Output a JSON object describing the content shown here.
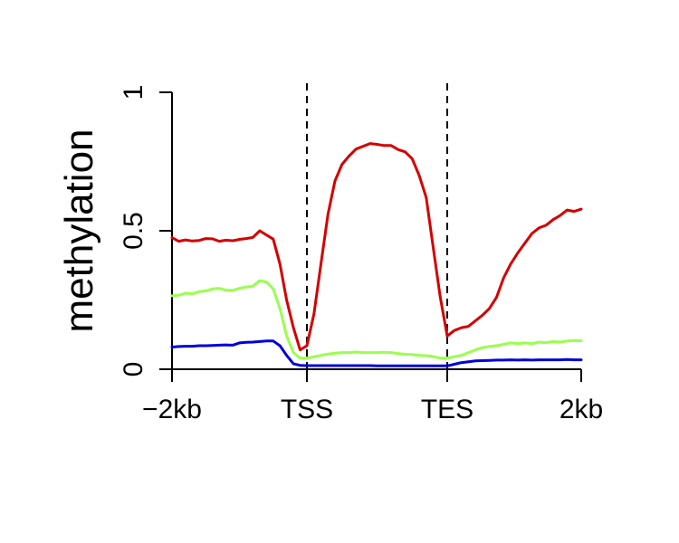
{
  "chart_data": {
    "type": "line",
    "title": "",
    "xlabel": "",
    "ylabel": "methylation",
    "x_ticks": [
      "−2kb",
      "TSS",
      "TES",
      "2kb"
    ],
    "y_ticks": [
      {
        "value": 0,
        "label": "0"
      },
      {
        "value": 0.5,
        "label": "0.5"
      },
      {
        "value": 1,
        "label": "1"
      }
    ],
    "ylim": [
      0,
      1
    ],
    "grid": false,
    "legend": "none",
    "boundary_markers": [
      "TSS",
      "TES"
    ],
    "series": [
      {
        "color": "#d40000",
        "values": [
          0.475,
          0.462,
          0.467,
          0.463,
          0.465,
          0.472,
          0.471,
          0.462,
          0.466,
          0.464,
          0.469,
          0.472,
          0.476,
          0.5,
          0.485,
          0.47,
          0.38,
          0.25,
          0.15,
          0.07,
          0.085,
          0.2,
          0.38,
          0.56,
          0.68,
          0.74,
          0.77,
          0.795,
          0.805,
          0.815,
          0.812,
          0.808,
          0.808,
          0.793,
          0.785,
          0.76,
          0.7,
          0.62,
          0.44,
          0.26,
          0.12,
          0.14,
          0.15,
          0.155,
          0.175,
          0.195,
          0.22,
          0.26,
          0.33,
          0.38,
          0.42,
          0.455,
          0.49,
          0.51,
          0.52,
          0.54,
          0.555,
          0.575,
          0.57,
          0.578
        ]
      },
      {
        "color": "#99ff4d",
        "values": [
          0.265,
          0.267,
          0.275,
          0.272,
          0.28,
          0.283,
          0.29,
          0.292,
          0.285,
          0.285,
          0.292,
          0.297,
          0.3,
          0.32,
          0.315,
          0.29,
          0.22,
          0.12,
          0.06,
          0.04,
          0.04,
          0.045,
          0.05,
          0.055,
          0.058,
          0.06,
          0.06,
          0.062,
          0.06,
          0.06,
          0.06,
          0.061,
          0.06,
          0.057,
          0.054,
          0.053,
          0.05,
          0.049,
          0.046,
          0.04,
          0.04,
          0.045,
          0.05,
          0.06,
          0.07,
          0.078,
          0.082,
          0.085,
          0.09,
          0.095,
          0.092,
          0.095,
          0.092,
          0.098,
          0.096,
          0.1,
          0.098,
          0.102,
          0.104,
          0.103
        ]
      },
      {
        "color": "#0000dd",
        "values": [
          0.08,
          0.082,
          0.083,
          0.083,
          0.085,
          0.085,
          0.086,
          0.087,
          0.088,
          0.087,
          0.095,
          0.097,
          0.098,
          0.1,
          0.102,
          0.102,
          0.085,
          0.05,
          0.02,
          0.014,
          0.013,
          0.013,
          0.013,
          0.013,
          0.013,
          0.013,
          0.013,
          0.013,
          0.013,
          0.013,
          0.012,
          0.012,
          0.012,
          0.012,
          0.012,
          0.012,
          0.012,
          0.012,
          0.012,
          0.012,
          0.012,
          0.018,
          0.024,
          0.027,
          0.03,
          0.031,
          0.032,
          0.033,
          0.033,
          0.034,
          0.033,
          0.034,
          0.033,
          0.034,
          0.034,
          0.034,
          0.034,
          0.035,
          0.034,
          0.034
        ]
      }
    ]
  }
}
